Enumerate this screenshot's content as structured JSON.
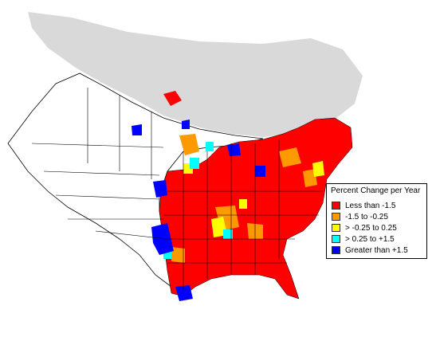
{
  "legend": {
    "title": "Percent Change per Year",
    "items": [
      {
        "label": "Less than -1.5",
        "color": "#ff0000"
      },
      {
        "label": "-1.5 to -0.25",
        "color": "#ff9900"
      },
      {
        "label": "> -0.25 to 0.25",
        "color": "#ffff00"
      },
      {
        "label": "> 0.25 to +1.5",
        "color": "#00ffff"
      },
      {
        "label": "Greater than +1.5",
        "color": "#0000ff"
      }
    ]
  },
  "map_colors": {
    "unsurveyed_north": "#d9d9d9",
    "land_unsampled": "#ffffff",
    "boundary": "#000000"
  }
}
